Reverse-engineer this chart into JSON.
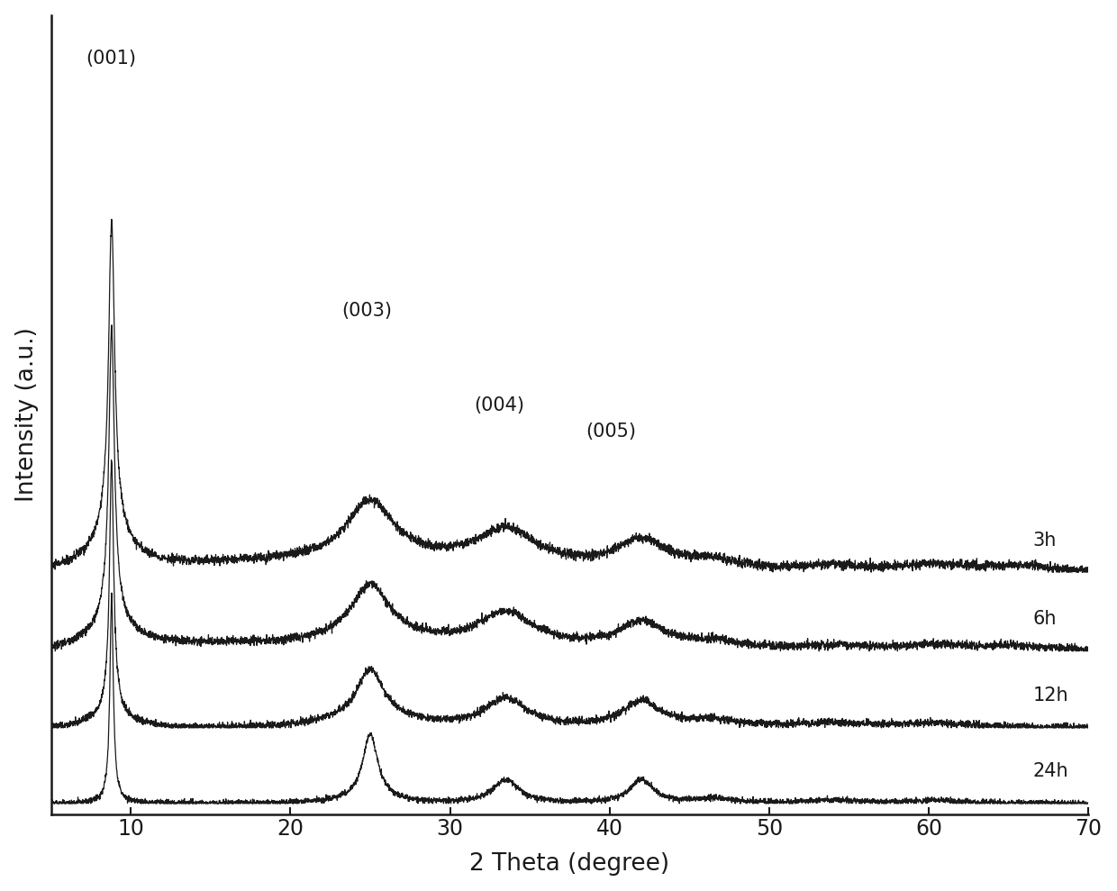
{
  "xlabel": "2 Theta (degree)",
  "ylabel": "Intensity (a.u.)",
  "xlim": [
    5,
    70
  ],
  "ylim": [
    -0.1,
    7.5
  ],
  "xticks": [
    10,
    20,
    30,
    40,
    50,
    60,
    70
  ],
  "labels": [
    "3h",
    "6h",
    "12h",
    "24h"
  ],
  "offsets": [
    2.2,
    1.45,
    0.72,
    0.0
  ],
  "peak_labels": [
    {
      "text": "(001)",
      "x": 7.2,
      "y_abs": 7.0
    },
    {
      "text": "(003)",
      "x": 23.2,
      "y_abs": 4.6
    },
    {
      "text": "(004)",
      "x": 31.5,
      "y_abs": 3.7
    },
    {
      "text": "(005)",
      "x": 38.5,
      "y_abs": 3.45
    }
  ],
  "label_positions": [
    {
      "text": "3h",
      "x": 66.5,
      "y_abs": 2.42
    },
    {
      "text": "6h",
      "x": 66.5,
      "y_abs": 1.67
    },
    {
      "text": "12h",
      "x": 66.5,
      "y_abs": 0.94
    },
    {
      "text": "24h",
      "x": 66.5,
      "y_abs": 0.22
    }
  ],
  "background_color": "#ffffff",
  "line_color": "#1a1a1a",
  "peak_label_fontsize": 15,
  "axis_label_fontsize": 19,
  "tick_label_fontsize": 17,
  "curve_label_fontsize": 15
}
